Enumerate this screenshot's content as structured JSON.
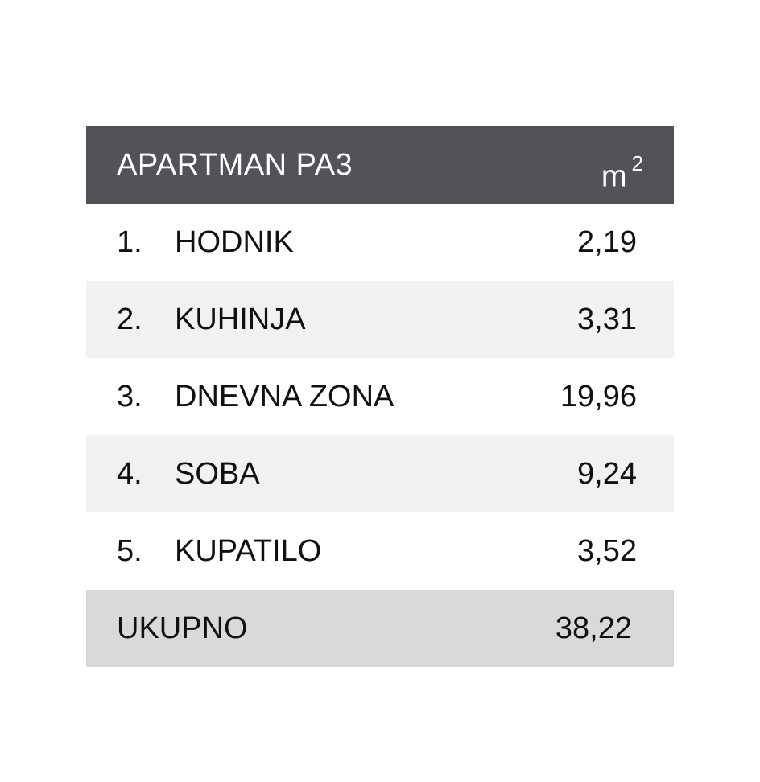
{
  "table": {
    "title": "APARTMAN PA3",
    "unit_base": "m",
    "unit_exp": "2",
    "rows": [
      {
        "num": "1.",
        "name": "HODNIK",
        "value": "2,19"
      },
      {
        "num": "2.",
        "name": "KUHINJA",
        "value": "3,31"
      },
      {
        "num": "3.",
        "name": "DNEVNA ZONA",
        "value": "19,96"
      },
      {
        "num": "4.",
        "name": "SOBA",
        "value": "9,24"
      },
      {
        "num": "5.",
        "name": "KUPATILO",
        "value": "3,52"
      }
    ],
    "total_label": "UKUPNO",
    "total_value": "38,22"
  },
  "colors": {
    "header_bg": "#545257",
    "shaded_row_bg": "#f1f1f1",
    "total_row_bg": "#d9d9d9"
  }
}
